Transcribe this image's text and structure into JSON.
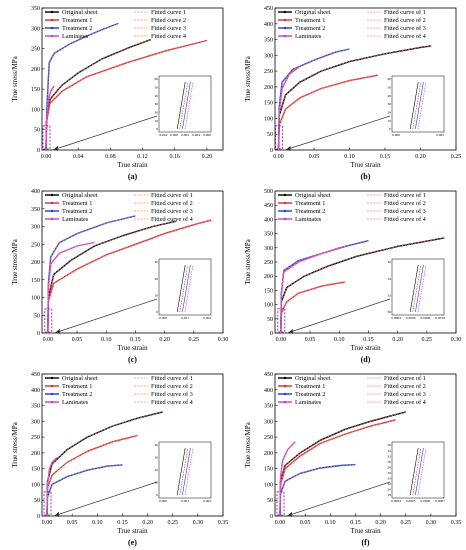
{
  "chart_data": [
    {
      "type": "line",
      "panel_label": "(a)",
      "xlabel": "True strain",
      "ylabel": "True stress/MPa",
      "xlim": [
        -0.005,
        0.22
      ],
      "ylim": [
        0,
        350
      ],
      "xticks": [
        "0.00",
        "0.04",
        "0.08",
        "0.12",
        "0.16",
        "0.20"
      ],
      "xtick_values": [
        0,
        0.04,
        0.08,
        0.12,
        0.16,
        0.2
      ],
      "yticks": [
        "0",
        "50",
        "100",
        "150",
        "200",
        "250",
        "300",
        "350"
      ],
      "ytick_values": [
        0,
        50,
        100,
        150,
        200,
        250,
        300,
        350
      ],
      "legend": [
        "Original sheet",
        "Treatment 1",
        "Treatment 2",
        "Laminates",
        "Fitted curve 1",
        "Fitted curve 2",
        "Fitted curve 3",
        "Fitted curve 4"
      ],
      "series": [
        {
          "name": "Original sheet",
          "color": "#000000",
          "x": [
            0,
            0.0006,
            0.005,
            0.02,
            0.04,
            0.07,
            0.1,
            0.13
          ],
          "y": [
            0,
            70,
            125,
            160,
            190,
            225,
            250,
            272
          ]
        },
        {
          "name": "Treatment 1",
          "color": "#d32f2f",
          "x": [
            0,
            0.0006,
            0.005,
            0.02,
            0.05,
            0.1,
            0.15,
            0.2
          ],
          "y": [
            0,
            70,
            115,
            145,
            180,
            215,
            245,
            270
          ]
        },
        {
          "name": "Treatment 2",
          "color": "#1e3cc8",
          "x": [
            0,
            0.001,
            0.004,
            0.01,
            0.03,
            0.05,
            0.07,
            0.09
          ],
          "y": [
            0,
            100,
            215,
            238,
            262,
            280,
            297,
            312
          ]
        },
        {
          "name": "Laminates",
          "color": "#c040d0",
          "x": [
            0,
            0.001,
            0.003,
            0.006,
            0.01
          ],
          "y": [
            0,
            80,
            125,
            145,
            158
          ]
        }
      ],
      "inset": {
        "xticks": [
          "-0.002",
          "0.000",
          "0.002",
          "0.004",
          "0.006"
        ],
        "yticks": [
          "0",
          "10",
          "20",
          "30",
          "40",
          "50",
          "60"
        ]
      }
    },
    {
      "type": "line",
      "panel_label": "(b)",
      "xlabel": "True strain",
      "ylabel": "True stress/MPa",
      "xlim": [
        -0.005,
        0.25
      ],
      "ylim": [
        0,
        450
      ],
      "xticks": [
        "0.00",
        "0.05",
        "0.10",
        "0.15",
        "0.20",
        "0.25"
      ],
      "xtick_values": [
        0,
        0.05,
        0.1,
        0.15,
        0.2,
        0.25
      ],
      "yticks": [
        "0",
        "50",
        "100",
        "150",
        "200",
        "250",
        "300",
        "350",
        "400",
        "450"
      ],
      "ytick_values": [
        0,
        50,
        100,
        150,
        200,
        250,
        300,
        350,
        400,
        450
      ],
      "legend": [
        "Original sheet",
        "Treatment 1",
        "Treatment 2",
        "Laminates",
        "Fitted curve of 1",
        "Fitted curve of 2",
        "Fitted curve of 3",
        "Fitted curve of 4"
      ],
      "series": [
        {
          "name": "Original sheet",
          "color": "#000000",
          "x": [
            0,
            0.001,
            0.01,
            0.03,
            0.06,
            0.1,
            0.15,
            0.2,
            0.215
          ],
          "y": [
            0,
            110,
            175,
            215,
            250,
            280,
            305,
            325,
            330
          ]
        },
        {
          "name": "Treatment 1",
          "color": "#d32f2f",
          "x": [
            0,
            0.001,
            0.01,
            0.03,
            0.06,
            0.1,
            0.14
          ],
          "y": [
            0,
            80,
            130,
            165,
            195,
            220,
            237
          ]
        },
        {
          "name": "Treatment 2",
          "color": "#1e3cc8",
          "x": [
            0,
            0.001,
            0.005,
            0.02,
            0.05,
            0.08,
            0.1
          ],
          "y": [
            0,
            140,
            215,
            255,
            285,
            310,
            320
          ]
        },
        {
          "name": "Laminates",
          "color": "#c040d0",
          "x": [
            0,
            0.001,
            0.005,
            0.015,
            0.03
          ],
          "y": [
            0,
            120,
            195,
            240,
            265
          ]
        }
      ],
      "inset": {
        "xticks": [
          "0.000",
          "0.002"
        ],
        "yticks": [
          "0",
          "10",
          "20",
          "30",
          "40",
          "50",
          "60"
        ]
      }
    },
    {
      "type": "line",
      "panel_label": "(c)",
      "xlabel": "True strain",
      "ylabel": "True stress/MPa",
      "xlim": [
        -0.01,
        0.3
      ],
      "ylim": [
        0,
        400
      ],
      "xticks": [
        "0.00",
        "0.05",
        "0.10",
        "0.15",
        "0.20",
        "0.25",
        "0.30"
      ],
      "xtick_values": [
        0,
        0.05,
        0.1,
        0.15,
        0.2,
        0.25,
        0.3
      ],
      "yticks": [
        "0",
        "50",
        "100",
        "150",
        "200",
        "250",
        "300",
        "350",
        "400"
      ],
      "ytick_values": [
        0,
        50,
        100,
        150,
        200,
        250,
        300,
        350,
        400
      ],
      "legend": [
        "Original sheet",
        "Treatment 1",
        "Treatment 2",
        "Laminates",
        "Fitted curve of 1",
        "Fitted curve of 2",
        "Fitted curve of 3",
        "Fitted curve of 4"
      ],
      "series": [
        {
          "name": "Original sheet",
          "color": "#000000",
          "x": [
            0,
            0.001,
            0.01,
            0.04,
            0.08,
            0.13,
            0.18,
            0.22
          ],
          "y": [
            0,
            100,
            165,
            205,
            245,
            275,
            300,
            315
          ]
        },
        {
          "name": "Treatment 1",
          "color": "#d32f2f",
          "x": [
            0,
            0.001,
            0.01,
            0.05,
            0.1,
            0.15,
            0.2,
            0.25,
            0.28
          ],
          "y": [
            0,
            90,
            140,
            180,
            220,
            250,
            280,
            305,
            318
          ]
        },
        {
          "name": "Treatment 2",
          "color": "#1e3cc8",
          "x": [
            0,
            0.001,
            0.005,
            0.02,
            0.05,
            0.1,
            0.15
          ],
          "y": [
            0,
            140,
            215,
            255,
            280,
            310,
            330
          ]
        },
        {
          "name": "Laminates",
          "color": "#c040d0",
          "x": [
            0,
            0.001,
            0.005,
            0.02,
            0.05,
            0.08
          ],
          "y": [
            0,
            130,
            195,
            225,
            245,
            255
          ]
        }
      ],
      "inset": {
        "xticks": [
          "0.000",
          "0.001",
          "0.002"
        ],
        "yticks": [
          "0",
          "10",
          "20",
          "30"
        ]
      }
    },
    {
      "type": "line",
      "panel_label": "(d)",
      "xlabel": "True strain",
      "ylabel": "True stress/MPa",
      "xlim": [
        -0.01,
        0.3
      ],
      "ylim": [
        0,
        500
      ],
      "xticks": [
        "0.00",
        "0.05",
        "0.10",
        "0.15",
        "0.20",
        "0.25",
        "0.30"
      ],
      "xtick_values": [
        0,
        0.05,
        0.1,
        0.15,
        0.2,
        0.25,
        0.3
      ],
      "yticks": [
        "0",
        "50",
        "100",
        "150",
        "200",
        "250",
        "300",
        "350",
        "400",
        "450",
        "500"
      ],
      "ytick_values": [
        0,
        50,
        100,
        150,
        200,
        250,
        300,
        350,
        400,
        450,
        500
      ],
      "legend": [
        "Original sheet",
        "Treatment 1",
        "Treatment 2",
        "Laminates",
        "Fitted curve of 1",
        "Fitted curve of 2",
        "Fitted curve of 3",
        "Fitted curve of 4"
      ],
      "series": [
        {
          "name": "Original sheet",
          "color": "#000000",
          "x": [
            0,
            0.001,
            0.01,
            0.04,
            0.08,
            0.13,
            0.2,
            0.28
          ],
          "y": [
            0,
            110,
            160,
            200,
            235,
            270,
            305,
            335
          ]
        },
        {
          "name": "Treatment 1",
          "color": "#d32f2f",
          "x": [
            0,
            0.001,
            0.01,
            0.03,
            0.07,
            0.11
          ],
          "y": [
            0,
            70,
            110,
            140,
            165,
            180
          ]
        },
        {
          "name": "Treatment 2",
          "color": "#1e3cc8",
          "x": [
            0,
            0.001,
            0.005,
            0.03,
            0.07,
            0.11,
            0.15
          ],
          "y": [
            0,
            140,
            220,
            255,
            280,
            305,
            325
          ]
        },
        {
          "name": "Laminates",
          "color": "#c040d0",
          "x": [
            0,
            0.001,
            0.005,
            0.03,
            0.07,
            0.1
          ],
          "y": [
            0,
            140,
            215,
            250,
            280,
            300
          ]
        }
      ],
      "inset": {
        "xticks": [
          "0.0004",
          "0.0006",
          "0.0008",
          "0.0010"
        ],
        "yticks": [
          "30",
          "32",
          "34",
          "36"
        ]
      }
    },
    {
      "type": "line",
      "panel_label": "(e)",
      "xlabel": "True strain",
      "ylabel": "True stress/MPa",
      "xlim": [
        -0.01,
        0.35
      ],
      "ylim": [
        0,
        450
      ],
      "xticks": [
        "0.00",
        "0.05",
        "0.10",
        "0.15",
        "0.20",
        "0.25",
        "0.30",
        "0.35"
      ],
      "xtick_values": [
        0,
        0.05,
        0.1,
        0.15,
        0.2,
        0.25,
        0.3,
        0.35
      ],
      "yticks": [
        "0",
        "50",
        "100",
        "150",
        "200",
        "250",
        "300",
        "350",
        "400",
        "450"
      ],
      "ytick_values": [
        0,
        50,
        100,
        150,
        200,
        250,
        300,
        350,
        400,
        450
      ],
      "legend": [
        "Original sheet",
        "Treatment 1",
        "Treatment 2",
        "Laminates",
        "Fitted curve of 1",
        "Fitted curve of 2",
        "Fitted curve of 3",
        "Fitted curve of 4"
      ],
      "series": [
        {
          "name": "Original sheet",
          "color": "#000000",
          "x": [
            0,
            0.001,
            0.01,
            0.04,
            0.08,
            0.13,
            0.18,
            0.23
          ],
          "y": [
            0,
            110,
            165,
            210,
            250,
            285,
            310,
            330
          ]
        },
        {
          "name": "Treatment 1",
          "color": "#d32f2f",
          "x": [
            0,
            0.001,
            0.01,
            0.04,
            0.08,
            0.13,
            0.18
          ],
          "y": [
            0,
            90,
            130,
            170,
            205,
            235,
            255
          ]
        },
        {
          "name": "Treatment 2",
          "color": "#1e3cc8",
          "x": [
            0,
            0.001,
            0.01,
            0.04,
            0.08,
            0.12,
            0.15
          ],
          "y": [
            0,
            60,
            100,
            125,
            145,
            158,
            162
          ]
        },
        {
          "name": "Laminates",
          "color": "#c040d0",
          "x": [
            0,
            0.001,
            0.005,
            0.01,
            0.02
          ],
          "y": [
            0,
            100,
            150,
            170,
            185
          ]
        }
      ],
      "inset": {
        "xticks": [
          "0.000",
          "0.001",
          "0.002"
        ],
        "yticks": [
          "0",
          "10",
          "20",
          "30",
          "40"
        ]
      }
    },
    {
      "type": "line",
      "panel_label": "(f)",
      "xlabel": "True strain",
      "ylabel": "True stress/MPa",
      "xlim": [
        -0.01,
        0.35
      ],
      "ylim": [
        0,
        450
      ],
      "xticks": [
        "0.00",
        "0.05",
        "0.10",
        "0.15",
        "0.20",
        "0.25",
        "0.30",
        "0.35"
      ],
      "xtick_values": [
        0,
        0.05,
        0.1,
        0.15,
        0.2,
        0.25,
        0.3,
        0.35
      ],
      "yticks": [
        "0",
        "50",
        "100",
        "150",
        "200",
        "250",
        "300",
        "350",
        "400",
        "450"
      ],
      "ytick_values": [
        0,
        50,
        100,
        150,
        200,
        250,
        300,
        350,
        400,
        450
      ],
      "legend": [
        "Original sheet",
        "Treatment 1",
        "Treatment 2",
        "Laminates",
        "Fitted curve of 1",
        "Fitted curve of 2",
        "Fitted curve of 3",
        "Fitted curve of 4"
      ],
      "series": [
        {
          "name": "Original sheet",
          "color": "#000000",
          "x": [
            0,
            0.001,
            0.01,
            0.04,
            0.08,
            0.13,
            0.18,
            0.25
          ],
          "y": [
            0,
            110,
            160,
            200,
            240,
            275,
            300,
            330
          ]
        },
        {
          "name": "Treatment 1",
          "color": "#d32f2f",
          "x": [
            0,
            0.001,
            0.01,
            0.04,
            0.08,
            0.13,
            0.18,
            0.23
          ],
          "y": [
            0,
            100,
            150,
            190,
            230,
            260,
            285,
            305
          ]
        },
        {
          "name": "Treatment 2",
          "color": "#1e3cc8",
          "x": [
            0,
            0.001,
            0.01,
            0.04,
            0.08,
            0.12,
            0.15
          ],
          "y": [
            0,
            70,
            110,
            135,
            152,
            160,
            163
          ]
        },
        {
          "name": "Laminates",
          "color": "#c040d0",
          "x": [
            0,
            0.001,
            0.005,
            0.015,
            0.03
          ],
          "y": [
            0,
            120,
            175,
            210,
            235
          ]
        }
      ],
      "inset": {
        "xticks": [
          "0.0004",
          "0.0005",
          "0.0006",
          "0.0007"
        ],
        "yticks": [
          "18",
          "20",
          "22",
          "24",
          "26",
          "28",
          "30",
          "32",
          "34",
          "36"
        ]
      }
    }
  ]
}
